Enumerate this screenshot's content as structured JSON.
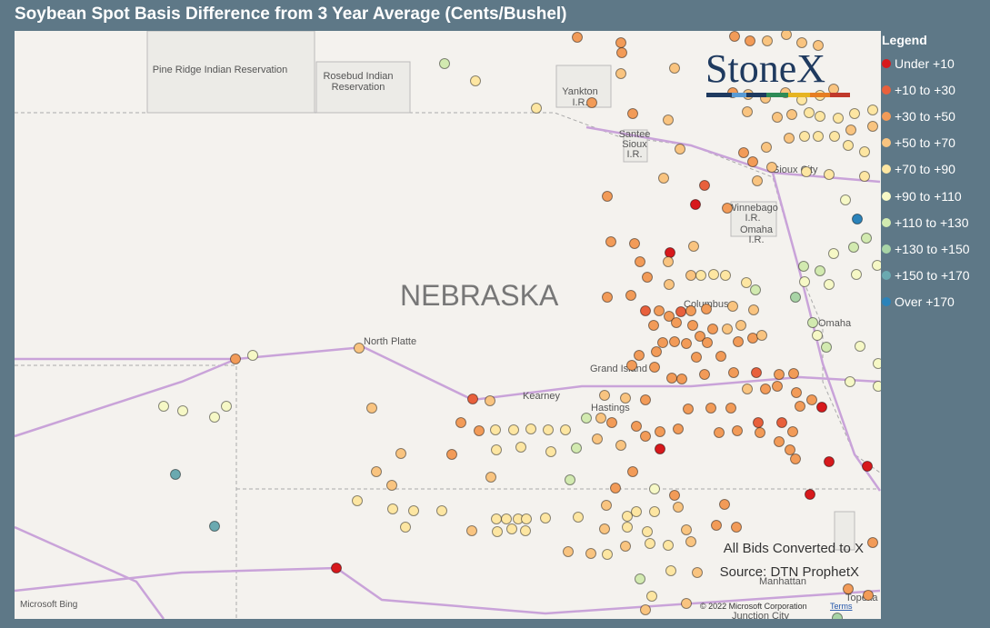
{
  "header": {
    "title": "Soybean Spot Basis Difference from 3 Year Average (Cents/Bushel)"
  },
  "legend": {
    "title": "Legend",
    "items": [
      {
        "label": "Under +10",
        "color": "#d7191c"
      },
      {
        "label": "+10 to +30",
        "color": "#e8603c"
      },
      {
        "label": "+30 to +50",
        "color": "#f29b58"
      },
      {
        "label": "+50 to +70",
        "color": "#f9c480"
      },
      {
        "label": "+70 to +90",
        "color": "#fde6a2"
      },
      {
        "label": "+90 to +110",
        "color": "#f6f8c6"
      },
      {
        "label": "+110 to +130",
        "color": "#d2eab0"
      },
      {
        "label": "+130 to +150",
        "color": "#a8d4a6"
      },
      {
        "label": "+150 to +170",
        "color": "#6aa9b0"
      },
      {
        "label": "Over +170",
        "color": "#2b83ba"
      }
    ]
  },
  "map": {
    "labels": {
      "pine_ridge": "Pine Ridge Indian Reservation",
      "rosebud_1": "Rosebud Indian",
      "rosebud_2": "Reservation",
      "yankton_1": "Yankton",
      "yankton_2": "I.R.",
      "santee_1": "Santee",
      "santee_2": "Sioux",
      "santee_3": "I.R.",
      "sioux_city": "Sioux City",
      "winnebago_1": "Winnebago",
      "winnebago_2": "I.R.",
      "omaha_ir_1": "Omaha",
      "omaha_ir_2": "I.R.",
      "state": "NEBRASKA",
      "north_platte": "North Platte",
      "grand_island": "Grand Island",
      "kearney": "Kearney",
      "hastings": "Hastings",
      "columbus": "Columbus",
      "omaha": "Omaha",
      "manhattan": "Manhattan",
      "topeka": "Topeka",
      "junction_city": "Junction City"
    },
    "brand": "StoneX",
    "note_1": "All Bids Converted to X",
    "note_2": "Source: DTN ProphetX",
    "bing": "Microsoft Bing",
    "copyright": "© 2022 Microsoft Corporation",
    "terms": "Terms"
  }
}
